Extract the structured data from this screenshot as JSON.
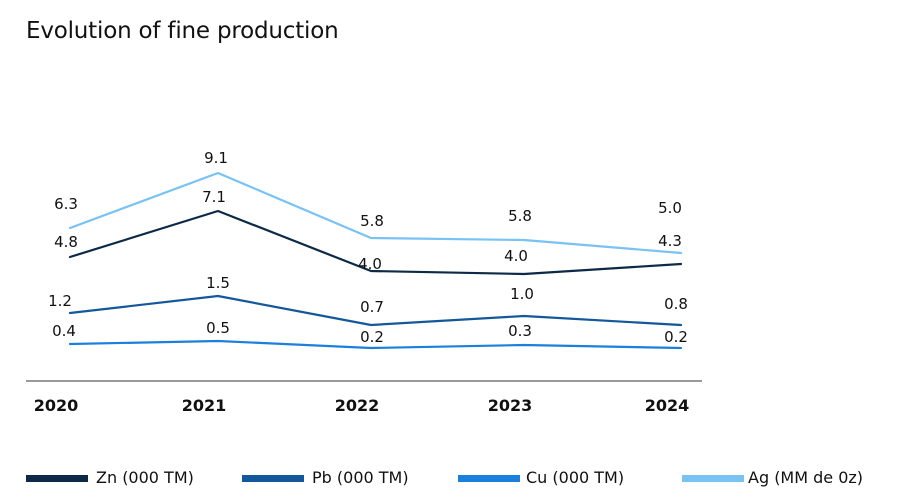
{
  "chart_data": {
    "type": "line",
    "title": "Evolution of fine production",
    "x": [
      "2020",
      "2021",
      "2022",
      "2023",
      "2024"
    ],
    "legend_position": "bottom",
    "grid": false,
    "series": [
      {
        "name": "Zn (000 TM)",
        "color": "#0c2a47",
        "values": [
          4.8,
          7.1,
          4.0,
          4.0,
          4.3
        ],
        "labels": [
          "4.8",
          "7.1",
          "4.0",
          "4.0",
          "4.3"
        ]
      },
      {
        "name": "Pb (000 TM)",
        "color": "#12589a",
        "values": [
          1.2,
          1.5,
          0.7,
          1.0,
          0.8
        ],
        "labels": [
          "1.2",
          "1.5",
          "0.7",
          "1.0",
          "0.8"
        ]
      },
      {
        "name": "Cu (000 TM)",
        "color": "#1a7fdd",
        "values": [
          0.4,
          0.5,
          0.2,
          0.3,
          0.2
        ],
        "labels": [
          "0.4",
          "0.5",
          "0.2",
          "0.3",
          "0.2"
        ]
      },
      {
        "name": "Ag (MM de 0z)",
        "color": "#78c2f4",
        "values": [
          6.3,
          9.1,
          5.8,
          5.8,
          5.0
        ],
        "labels": [
          "6.3",
          "9.1",
          "5.8",
          "5.8",
          "5.0"
        ]
      }
    ]
  }
}
